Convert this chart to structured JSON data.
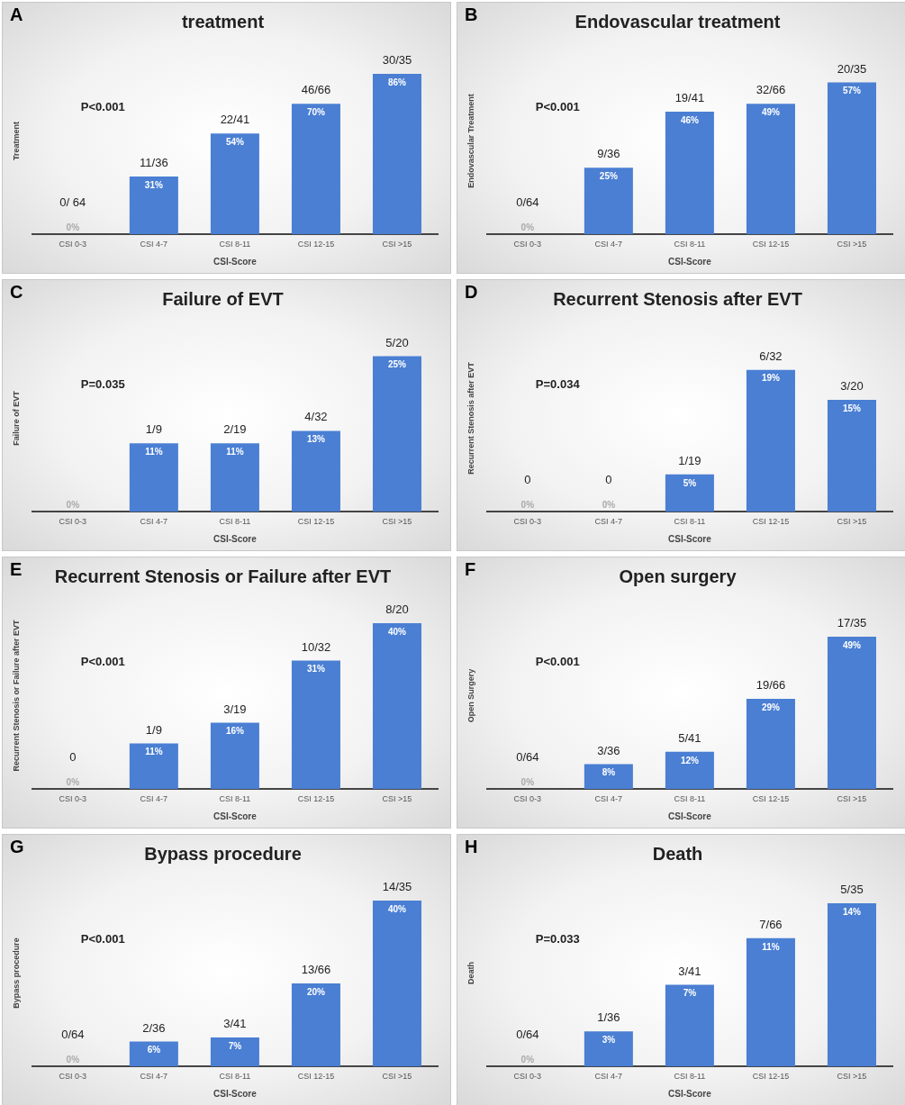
{
  "chart_data": [
    {
      "type": "bar",
      "title": "treatment",
      "xlabel": "CSI-Score",
      "ylabel": "Treatment",
      "categories": [
        "CSI 0-3",
        "CSI 4-7",
        "CSI 8-11",
        "CSI 12-15",
        "CSI >15"
      ],
      "values": [
        0,
        31,
        54,
        70,
        86
      ],
      "value_labels": [
        "0%",
        "31%",
        "54%",
        "70%",
        "86%"
      ],
      "color": "#4a7fd3",
      "tick_labels": "x",
      "grid": false,
      "legend": false,
      "annotations": [
        "A",
        "P<0.001",
        {
          "text": "0/ 64",
          "x": "CSI 0-3",
          "y": 0
        },
        {
          "text": "11/36",
          "x": "CSI 4-7",
          "y": 31
        },
        {
          "text": "22/41",
          "x": "CSI 8-11",
          "y": 54
        },
        {
          "text": "46/66",
          "x": "CSI 12-15",
          "y": 70
        },
        {
          "text": "30/35",
          "x": "CSI >15",
          "y": 86
        }
      ]
    },
    {
      "type": "bar",
      "title": "Endovascular treatment",
      "xlabel": "CSI-Score",
      "ylabel": "Endovascular Treatment",
      "categories": [
        "CSI 0-3",
        "CSI 4-7",
        "CSI 8-11",
        "CSI 12-15",
        "CSI >15"
      ],
      "values": [
        0,
        25,
        46,
        49,
        57
      ],
      "value_labels": [
        "0%",
        "25%",
        "46%",
        "49%",
        "57%"
      ],
      "color": "#4a7fd3",
      "tick_labels": "x",
      "grid": false,
      "legend": false,
      "annotations": [
        "B",
        "P<0.001",
        {
          "text": "0/64",
          "x": "CSI 0-3",
          "y": 0
        },
        {
          "text": "9/36",
          "x": "CSI 4-7",
          "y": 25
        },
        {
          "text": "19/41",
          "x": "CSI 8-11",
          "y": 46
        },
        {
          "text": "32/66",
          "x": "CSI 12-15",
          "y": 49
        },
        {
          "text": "20/35",
          "x": "CSI >15",
          "y": 57
        }
      ]
    },
    {
      "type": "bar",
      "title": "Failure of EVT",
      "xlabel": "CSI-Score",
      "ylabel": "Failure of EVT",
      "categories": [
        "CSI 0-3",
        "CSI 4-7",
        "CSI 8-11",
        "CSI 12-15",
        "CSI >15"
      ],
      "values": [
        0,
        11,
        11,
        13,
        25
      ],
      "value_labels": [
        "0%",
        "11%",
        "11%",
        "13%",
        "25%"
      ],
      "color": "#4a7fd3",
      "tick_labels": "x",
      "grid": false,
      "legend": false,
      "annotations": [
        "C",
        "P=0.035",
        {
          "text": "1/9",
          "x": "CSI 4-7",
          "y": 11
        },
        {
          "text": "2/19",
          "x": "CSI 8-11",
          "y": 11
        },
        {
          "text": "4/32",
          "x": "CSI 12-15",
          "y": 13
        },
        {
          "text": "5/20",
          "x": "CSI >15",
          "y": 25
        }
      ]
    },
    {
      "type": "bar",
      "title": "Recurrent Stenosis after EVT",
      "xlabel": "CSI-Score",
      "ylabel": "Recurrent Stenosis after EVT",
      "categories": [
        "CSI 0-3",
        "CSI 4-7",
        "CSI 8-11",
        "CSI 12-15",
        "CSI >15"
      ],
      "values": [
        0,
        0,
        5,
        19,
        15
      ],
      "value_labels": [
        "0%",
        "0%",
        "5%",
        "19%",
        "15%"
      ],
      "color": "#4a7fd3",
      "tick_labels": "x",
      "grid": false,
      "legend": false,
      "annotations": [
        "D",
        "P=0.034",
        {
          "text": "0",
          "x": "CSI 0-3",
          "y": 0
        },
        {
          "text": "0",
          "x": "CSI 4-7",
          "y": 0
        },
        {
          "text": "1/19",
          "x": "CSI 8-11",
          "y": 5
        },
        {
          "text": "6/32",
          "x": "CSI 12-15",
          "y": 19
        },
        {
          "text": "3/20",
          "x": "CSI >15",
          "y": 15
        }
      ]
    },
    {
      "type": "bar",
      "title": "Recurrent Stenosis or Failure after EVT",
      "xlabel": "CSI-Score",
      "ylabel": "Recurrent Stenosis or Failure after EVT",
      "categories": [
        "CSI 0-3",
        "CSI 4-7",
        "CSI 8-11",
        "CSI 12-15",
        "CSI >15"
      ],
      "values": [
        0,
        11,
        16,
        31,
        40
      ],
      "value_labels": [
        "0%",
        "11%",
        "16%",
        "31%",
        "40%"
      ],
      "color": "#4a7fd3",
      "tick_labels": "x",
      "grid": false,
      "legend": false,
      "annotations": [
        "E",
        "P<0.001",
        {
          "text": "0",
          "x": "CSI 0-3",
          "y": 0
        },
        {
          "text": "1/9",
          "x": "CSI 4-7",
          "y": 11
        },
        {
          "text": "3/19",
          "x": "CSI 8-11",
          "y": 16
        },
        {
          "text": "10/32",
          "x": "CSI 12-15",
          "y": 31
        },
        {
          "text": "8/20",
          "x": "CSI >15",
          "y": 40
        }
      ]
    },
    {
      "type": "bar",
      "title": "Open surgery",
      "xlabel": "CSI-Score",
      "ylabel": "Open Surgery",
      "categories": [
        "CSI 0-3",
        "CSI 4-7",
        "CSI 8-11",
        "CSI 12-15",
        "CSI >15"
      ],
      "values": [
        0,
        8,
        12,
        29,
        49
      ],
      "value_labels": [
        "0%",
        "8%",
        "12%",
        "29%",
        "49%"
      ],
      "color": "#4a7fd3",
      "tick_labels": "x",
      "grid": false,
      "legend": false,
      "annotations": [
        "F",
        "P<0.001",
        {
          "text": "0/64",
          "x": "CSI 0-3",
          "y": 0
        },
        {
          "text": "3/36",
          "x": "CSI 4-7",
          "y": 8
        },
        {
          "text": "5/41",
          "x": "CSI 8-11",
          "y": 12
        },
        {
          "text": "19/66",
          "x": "CSI 12-15",
          "y": 29
        },
        {
          "text": "17/35",
          "x": "CSI >15",
          "y": 49
        }
      ]
    },
    {
      "type": "bar",
      "title": "Bypass procedure",
      "xlabel": "CSI-Score",
      "ylabel": "Bypass procedure",
      "categories": [
        "CSI 0-3",
        "CSI 4-7",
        "CSI 8-11",
        "CSI 12-15",
        "CSI >15"
      ],
      "values": [
        0,
        6,
        7,
        20,
        40
      ],
      "value_labels": [
        "0%",
        "6%",
        "7%",
        "20%",
        "40%"
      ],
      "color": "#4a7fd3",
      "tick_labels": "x",
      "grid": false,
      "legend": false,
      "annotations": [
        "G",
        "P<0.001",
        {
          "text": "0/64",
          "x": "CSI 0-3",
          "y": 0
        },
        {
          "text": "2/36",
          "x": "CSI 4-7",
          "y": 6
        },
        {
          "text": "3/41",
          "x": "CSI 8-11",
          "y": 7
        },
        {
          "text": "13/66",
          "x": "CSI 12-15",
          "y": 20
        },
        {
          "text": "14/35",
          "x": "CSI >15",
          "y": 40
        }
      ]
    },
    {
      "type": "bar",
      "title": "Death",
      "xlabel": "CSI-Score",
      "ylabel": "Death",
      "categories": [
        "CSI 0-3",
        "CSI 4-7",
        "CSI 8-11",
        "CSI 12-15",
        "CSI >15"
      ],
      "values": [
        0,
        3,
        7,
        11,
        14
      ],
      "value_labels": [
        "0%",
        "3%",
        "7%",
        "11%",
        "14%"
      ],
      "color": "#4a7fd3",
      "tick_labels": "x",
      "grid": false,
      "legend": false,
      "annotations": [
        "H",
        "P=0.033",
        {
          "text": "0/64",
          "x": "CSI 0-3",
          "y": 0
        },
        {
          "text": "1/36",
          "x": "CSI 4-7",
          "y": 3
        },
        {
          "text": "3/41",
          "x": "CSI 8-11",
          "y": 7
        },
        {
          "text": "7/66",
          "x": "CSI 12-15",
          "y": 11
        },
        {
          "text": "5/35",
          "x": "CSI >15",
          "y": 14
        }
      ]
    }
  ]
}
